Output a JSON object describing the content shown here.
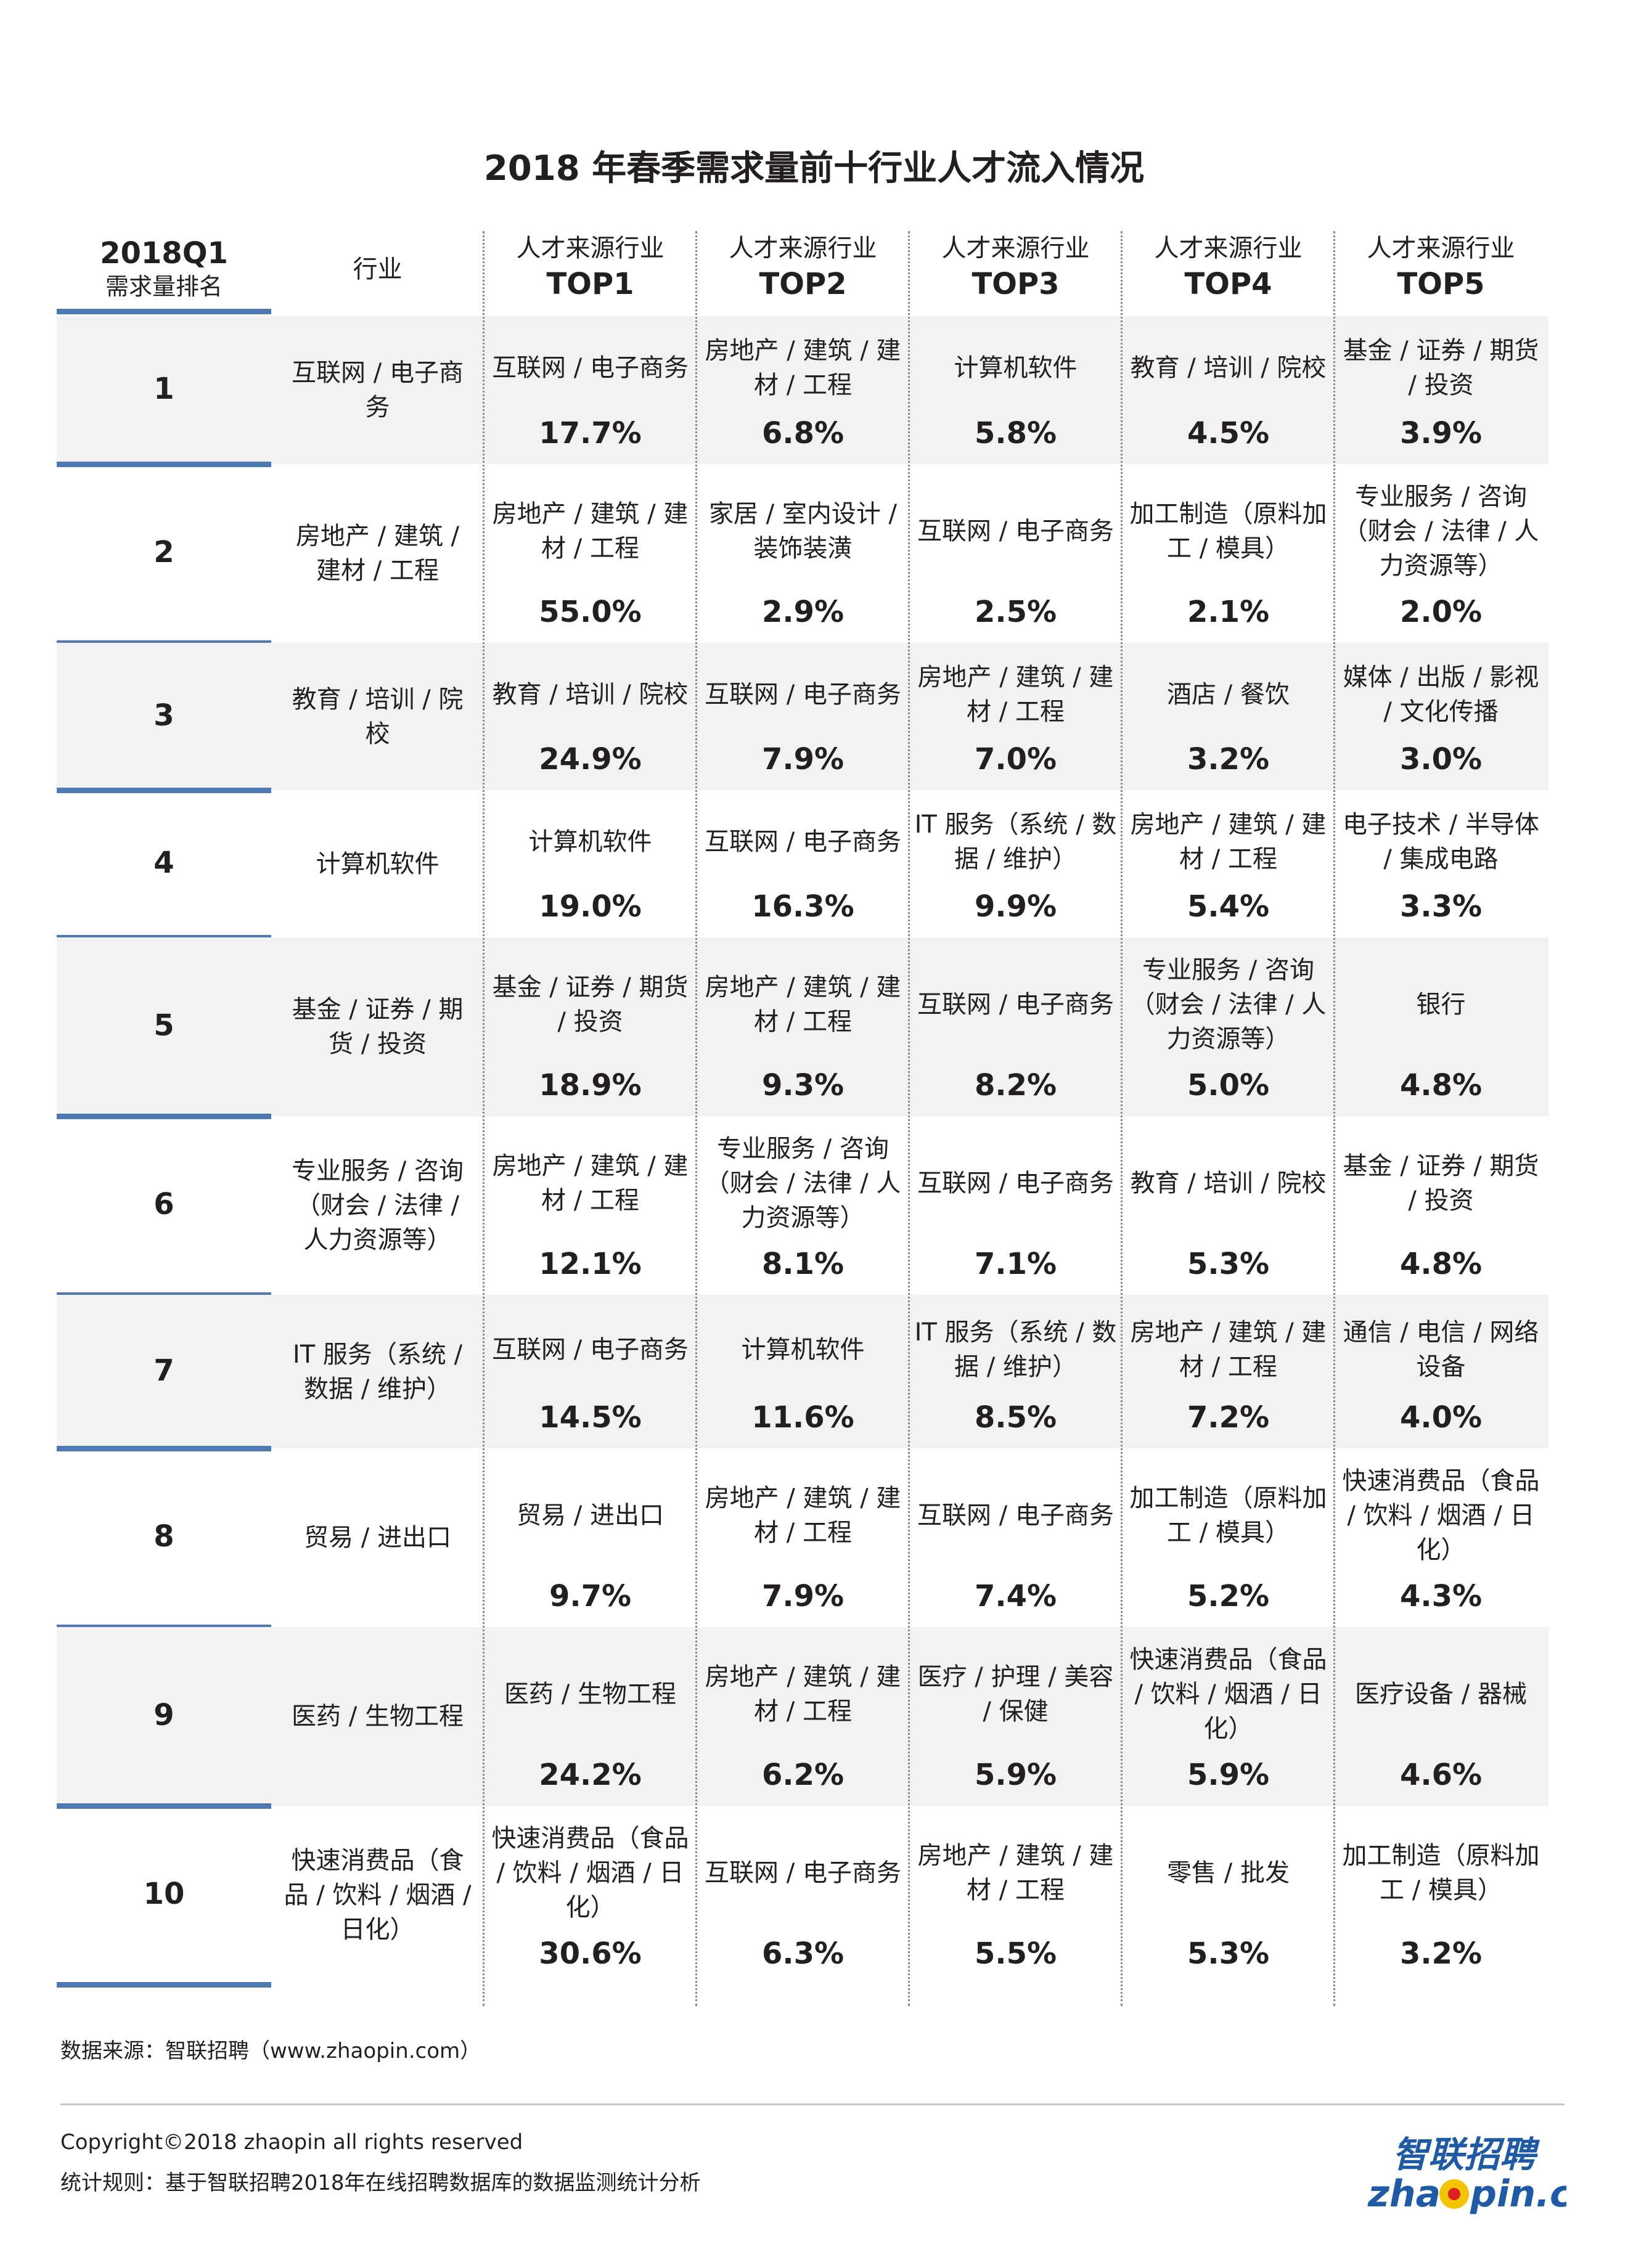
{
  "title": "2018 年春季需求量前十行业人才流入情况",
  "header": {
    "rank_line1": "2018Q1",
    "rank_line2": "需求量排名",
    "industry": "行业",
    "col_line1": "人才来源行业",
    "cols": [
      "TOP1",
      "TOP2",
      "TOP3",
      "TOP4",
      "TOP5"
    ]
  },
  "rows": [
    {
      "rank": "1",
      "industry": "互联网 / 电子商务",
      "sources": [
        "互联网 / 电子商务",
        "房地产 / 建筑 / 建材 / 工程",
        "计算机软件",
        "教育 / 培训 / 院校",
        "基金 / 证券 / 期货 / 投资"
      ],
      "pcts": [
        "17.7%",
        "6.8%",
        "5.8%",
        "4.5%",
        "3.9%"
      ]
    },
    {
      "rank": "2",
      "industry": "房地产 / 建筑 / 建材 / 工程",
      "sources": [
        "房地产 / 建筑 / 建材 / 工程",
        "家居 / 室内设计 / 装饰装潢",
        "互联网 / 电子商务",
        "加工制造（原料加工 / 模具）",
        "专业服务 / 咨询（财会 / 法律 / 人力资源等）"
      ],
      "pcts": [
        "55.0%",
        "2.9%",
        "2.5%",
        "2.1%",
        "2.0%"
      ]
    },
    {
      "rank": "3",
      "industry": "教育 / 培训 / 院校",
      "sources": [
        "教育 / 培训 / 院校",
        "互联网 / 电子商务",
        "房地产 / 建筑 / 建材 / 工程",
        "酒店 / 餐饮",
        "媒体 / 出版 / 影视 / 文化传播"
      ],
      "pcts": [
        "24.9%",
        "7.9%",
        "7.0%",
        "3.2%",
        "3.0%"
      ]
    },
    {
      "rank": "4",
      "industry": "计算机软件",
      "sources": [
        "计算机软件",
        "互联网 / 电子商务",
        "IT 服务（系统 / 数据 / 维护）",
        "房地产 / 建筑 / 建材 / 工程",
        "电子技术 / 半导体 / 集成电路"
      ],
      "pcts": [
        "19.0%",
        "16.3%",
        "9.9%",
        "5.4%",
        "3.3%"
      ]
    },
    {
      "rank": "5",
      "industry": "基金 / 证券 / 期货 / 投资",
      "sources": [
        "基金 / 证券 / 期货 / 投资",
        "房地产 / 建筑 / 建材 / 工程",
        "互联网 / 电子商务",
        "专业服务 / 咨询（财会 / 法律 / 人力资源等）",
        "银行"
      ],
      "pcts": [
        "18.9%",
        "9.3%",
        "8.2%",
        "5.0%",
        "4.8%"
      ]
    },
    {
      "rank": "6",
      "industry": "专业服务 / 咨询（财会 / 法律 / 人力资源等）",
      "sources": [
        "房地产 / 建筑 / 建材 / 工程",
        "专业服务 / 咨询（财会 / 法律 / 人力资源等）",
        "互联网 / 电子商务",
        "教育 / 培训 / 院校",
        "基金 / 证券 / 期货 / 投资"
      ],
      "pcts": [
        "12.1%",
        "8.1%",
        "7.1%",
        "5.3%",
        "4.8%"
      ]
    },
    {
      "rank": "7",
      "industry": "IT 服务（系统 / 数据 / 维护）",
      "sources": [
        "互联网 / 电子商务",
        "计算机软件",
        "IT 服务（系统 / 数据 / 维护）",
        "房地产 / 建筑 / 建材 / 工程",
        "通信 / 电信 / 网络设备"
      ],
      "pcts": [
        "14.5%",
        "11.6%",
        "8.5%",
        "7.2%",
        "4.0%"
      ]
    },
    {
      "rank": "8",
      "industry": "贸易 / 进出口",
      "sources": [
        "贸易 / 进出口",
        "房地产 / 建筑 / 建材 / 工程",
        "互联网 / 电子商务",
        "加工制造（原料加工 / 模具）",
        "快速消费品（食品 / 饮料 / 烟酒 / 日化）"
      ],
      "pcts": [
        "9.7%",
        "7.9%",
        "7.4%",
        "5.2%",
        "4.3%"
      ]
    },
    {
      "rank": "9",
      "industry": "医药 / 生物工程",
      "sources": [
        "医药 / 生物工程",
        "房地产 / 建筑 / 建材 / 工程",
        "医疗 / 护理 / 美容 / 保健",
        "快速消费品（食品 / 饮料 / 烟酒 / 日化）",
        "医疗设备 / 器械"
      ],
      "pcts": [
        "24.2%",
        "6.2%",
        "5.9%",
        "5.9%",
        "4.6%"
      ]
    },
    {
      "rank": "10",
      "industry": "快速消费品（食品 / 饮料 / 烟酒 / 日化）",
      "sources": [
        "快速消费品（食品 / 饮料 / 烟酒 / 日化）",
        "互联网 / 电子商务",
        "房地产 / 建筑 / 建材 / 工程",
        "零售 / 批发",
        "加工制造（原料加工 / 模具）"
      ],
      "pcts": [
        "30.6%",
        "6.3%",
        "5.5%",
        "5.3%",
        "3.2%"
      ]
    }
  ],
  "source_note": "数据来源：智联招聘（www.zhaopin.com）",
  "copyright": "Copyright©2018 zhaopin all rights reserved",
  "method_note": "统计规则：基于智联招聘2018年在线招聘数据库的数据监测统计分析",
  "logo": {
    "cn": "智联招聘",
    "en": "zhaopin.com",
    "brand_blue": "#1f5aa6",
    "brand_yellow": "#f5c400",
    "brand_red": "#e02020"
  },
  "colors": {
    "row_bar": "#4f79b3",
    "row_shade": "#f2f2f2"
  }
}
